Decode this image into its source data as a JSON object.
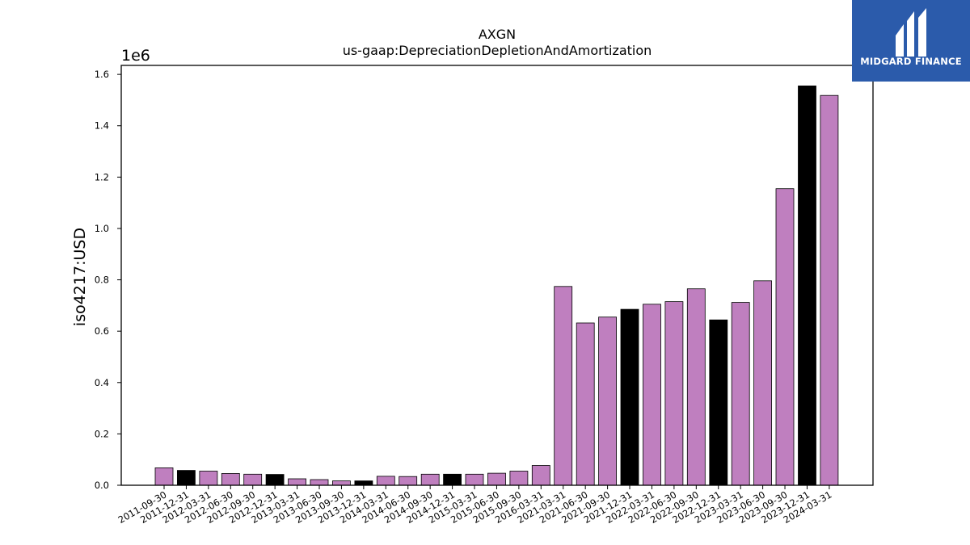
{
  "logo": {
    "text": "MIDGARD FINANCE",
    "icon": "midgard-m-icon",
    "background": "#2b5bab"
  },
  "chart_data": {
    "type": "bar",
    "title": "AXGN",
    "subtitle": "us-gaap:DepreciationDepletionAndAmortization",
    "xlabel": "",
    "ylabel": "iso4217:USD",
    "scale_label": "1e6",
    "ylim": [
      0,
      1.635
    ],
    "yticks": [
      "0.0",
      "0.2",
      "0.4",
      "0.6",
      "0.8",
      "1.0",
      "1.2",
      "1.4",
      "1.6"
    ],
    "grid": false,
    "colors": {
      "quarter": "#bf7fbf",
      "year_end": "#000000"
    },
    "categories": [
      "2011-09-30",
      "2011-12-31",
      "2012-03-31",
      "2012-06-30",
      "2012-09-30",
      "2012-12-31",
      "2013-03-31",
      "2013-06-30",
      "2013-09-30",
      "2013-12-31",
      "2014-03-31",
      "2014-06-30",
      "2014-09-30",
      "2014-12-31",
      "2015-03-31",
      "2015-06-30",
      "2015-09-30",
      "2016-03-31",
      "2021-03-31",
      "2021-06-30",
      "2021-09-30",
      "2021-12-31",
      "2022-03-31",
      "2022-06-30",
      "2022-09-30",
      "2022-12-31",
      "2023-03-31",
      "2023-06-30",
      "2023-09-30",
      "2023-12-31",
      "2024-03-31"
    ],
    "values": [
      0.068,
      0.058,
      0.055,
      0.046,
      0.043,
      0.042,
      0.025,
      0.022,
      0.017,
      0.017,
      0.035,
      0.034,
      0.043,
      0.043,
      0.043,
      0.047,
      0.055,
      0.077,
      0.774,
      0.632,
      0.655,
      0.685,
      0.705,
      0.715,
      0.765,
      0.644,
      0.712,
      0.796,
      1.155,
      1.555,
      1.518
    ],
    "highlight": [
      false,
      true,
      false,
      false,
      false,
      true,
      false,
      false,
      false,
      true,
      false,
      false,
      false,
      true,
      false,
      false,
      false,
      false,
      false,
      false,
      false,
      true,
      false,
      false,
      false,
      true,
      false,
      false,
      false,
      true,
      false
    ]
  }
}
